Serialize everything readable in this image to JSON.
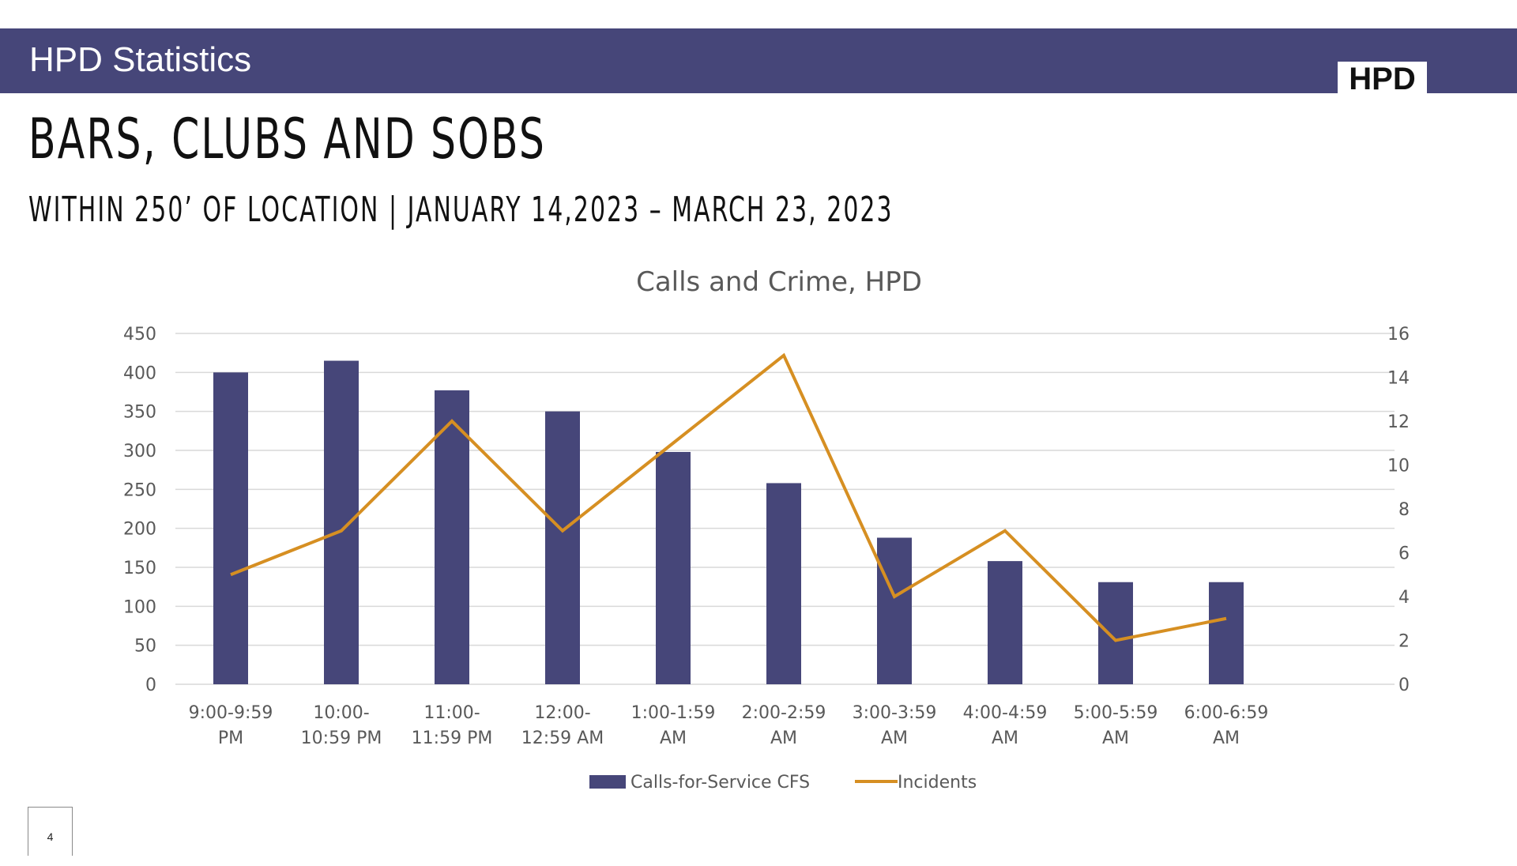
{
  "header": {
    "title": "HPD Statistics",
    "logo_text": "HPD",
    "bar_color": "#464679"
  },
  "slide": {
    "heading": "BARS, CLUBS AND SOBS",
    "subheading": "WITHIN 250’ OF LOCATION | JANUARY 14,2023 – MARCH 23, 2023",
    "page_number": "4"
  },
  "chart_data": {
    "type": "bar",
    "title": "Calls and Crime, HPD",
    "categories": [
      [
        "9:00-9:59",
        "PM"
      ],
      [
        "10:00-",
        "10:59 PM"
      ],
      [
        "11:00-",
        "11:59 PM"
      ],
      [
        "12:00-",
        "12:59 AM"
      ],
      [
        "1:00-1:59",
        "AM"
      ],
      [
        "2:00-2:59",
        "AM"
      ],
      [
        "3:00-3:59",
        "AM"
      ],
      [
        "4:00-4:59",
        "AM"
      ],
      [
        "5:00-5:59",
        "AM"
      ],
      [
        "6:00-6:59",
        "AM"
      ]
    ],
    "series": [
      {
        "name": "Calls-for-Service CFS",
        "type": "bar",
        "axis": "left",
        "color": "#464679",
        "values": [
          400,
          415,
          377,
          350,
          298,
          258,
          188,
          158,
          131,
          131
        ]
      },
      {
        "name": "Incidents",
        "type": "line",
        "axis": "right",
        "color": "#d68f22",
        "values": [
          5,
          7,
          12,
          7,
          11,
          15,
          4,
          7,
          2,
          3
        ]
      }
    ],
    "ylim_left": [
      0,
      450
    ],
    "yticks_left": [
      0,
      50,
      100,
      150,
      200,
      250,
      300,
      350,
      400,
      450
    ],
    "ylim_right": [
      0,
      16
    ],
    "yticks_right": [
      0,
      2,
      4,
      6,
      8,
      10,
      12,
      14,
      16
    ],
    "grid": true,
    "legend": "bottom",
    "gridline_color": "#d9d9d9"
  }
}
